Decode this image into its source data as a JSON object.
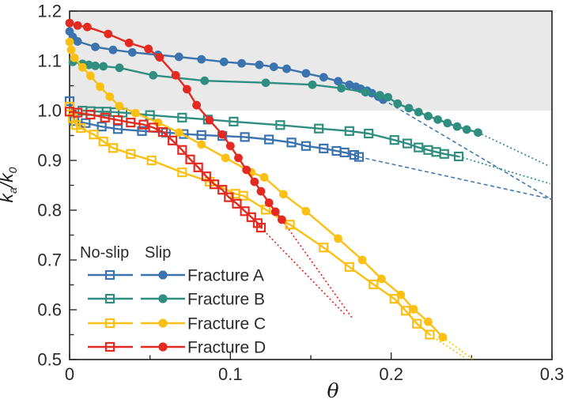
{
  "figure": {
    "xlabel": "θ",
    "ylabel": {
      "k1": "k",
      "sub_a": "a",
      "slash": "/",
      "k2": "k",
      "sub_0": "0"
    }
  },
  "chart_data": {
    "type": "line",
    "title": "",
    "xlabel": "θ",
    "ylabel": "k_a/k_0",
    "xlim": [
      0,
      0.3
    ],
    "ylim": [
      0.5,
      1.2
    ],
    "grid": false,
    "legend_position": "lower-left",
    "x_major_ticks": [
      0,
      0.1,
      0.2,
      0.3
    ],
    "x_tick_labels": [
      "0",
      "0.1",
      "0.2",
      "0.3"
    ],
    "x_minor_ticks": [
      0.05,
      0.15,
      0.25
    ],
    "y_major_ticks": [
      0.5,
      0.6,
      0.7,
      0.8,
      0.9,
      1.0,
      1.1,
      1.2
    ],
    "y_tick_labels": [
      "0.5",
      "0.6",
      "0.7",
      "0.8",
      "0.9",
      "1.0",
      "1.1",
      "1.2"
    ],
    "y_minor_ticks": [
      0.55,
      0.65,
      0.75,
      0.85,
      0.95,
      1.05,
      1.15
    ],
    "shaded_band": {
      "y_from": 1.0,
      "y_to": 1.2,
      "color": "#e9e9e9"
    },
    "colors": {
      "fracture_a": "#3a73ae",
      "fracture_b": "#2f8e80",
      "fracture_c": "#fcbf13",
      "fracture_d": "#e42a20",
      "axis": "#2b2b2b"
    },
    "legend": {
      "no_slip_header": "No-slip",
      "slip_header": "Slip",
      "entries": [
        {
          "label": "Fracture A",
          "color": "#3a73ae"
        },
        {
          "label": "Fracture B",
          "color": "#2f8e80"
        },
        {
          "label": "Fracture C",
          "color": "#fcbf13"
        },
        {
          "label": "Fracture D",
          "color": "#e42a20"
        }
      ]
    },
    "series": [
      {
        "name": "Fracture A no-slip",
        "fracture": "Fracture A",
        "variant": "no-slip",
        "marker": "square-open",
        "color": "#3a73ae",
        "extension_style": "dashed",
        "points": [
          [
            0,
            1.019
          ],
          [
            0.003,
            0.979
          ],
          [
            0.01,
            0.975
          ],
          [
            0.02,
            0.968
          ],
          [
            0.03,
            0.963
          ],
          [
            0.045,
            0.959
          ],
          [
            0.06,
            0.956
          ],
          [
            0.071,
            0.953
          ],
          [
            0.082,
            0.951
          ],
          [
            0.095,
            0.949
          ],
          [
            0.109,
            0.947
          ],
          [
            0.124,
            0.942
          ],
          [
            0.138,
            0.936
          ],
          [
            0.147,
            0.929
          ],
          [
            0.158,
            0.924
          ],
          [
            0.166,
            0.919
          ],
          [
            0.171,
            0.916
          ],
          [
            0.177,
            0.911
          ],
          [
            0.18,
            0.907
          ]
        ],
        "extension": [
          [
            0.18,
            0.907
          ],
          [
            0.3,
            0.822
          ]
        ]
      },
      {
        "name": "Fracture A slip",
        "fracture": "Fracture A",
        "variant": "slip",
        "marker": "circle-filled",
        "color": "#3a73ae",
        "extension_style": "dashed",
        "points": [
          [
            0,
            1.159
          ],
          [
            0.002,
            1.148
          ],
          [
            0.005,
            1.139
          ],
          [
            0.016,
            1.128
          ],
          [
            0.027,
            1.122
          ],
          [
            0.039,
            1.117
          ],
          [
            0.055,
            1.112
          ],
          [
            0.068,
            1.108
          ],
          [
            0.082,
            1.103
          ],
          [
            0.096,
            1.098
          ],
          [
            0.107,
            1.095
          ],
          [
            0.118,
            1.092
          ],
          [
            0.127,
            1.088
          ],
          [
            0.135,
            1.084
          ],
          [
            0.147,
            1.075
          ],
          [
            0.158,
            1.067
          ],
          [
            0.167,
            1.059
          ],
          [
            0.174,
            1.052
          ],
          [
            0.178,
            1.048
          ],
          [
            0.181,
            1.044
          ],
          [
            0.185,
            1.04
          ],
          [
            0.188,
            1.035
          ],
          [
            0.192,
            1.028
          ],
          [
            0.195,
            1.022
          ]
        ],
        "extension": [
          [
            0.195,
            1.022
          ],
          [
            0.3,
            0.821
          ]
        ]
      },
      {
        "name": "Fracture B no-slip",
        "fracture": "Fracture B",
        "variant": "no-slip",
        "marker": "square-open",
        "color": "#2f8e80",
        "extension_style": "dotted",
        "points": [
          [
            0.008,
            1.0
          ],
          [
            0.013,
            0.999
          ],
          [
            0.018,
            0.998
          ],
          [
            0.023,
            0.998
          ],
          [
            0.028,
            0.997
          ],
          [
            0.033,
            0.996
          ],
          [
            0.05,
            0.991
          ],
          [
            0.07,
            0.986
          ],
          [
            0.086,
            0.982
          ],
          [
            0.102,
            0.978
          ],
          [
            0.131,
            0.971
          ],
          [
            0.155,
            0.964
          ],
          [
            0.174,
            0.959
          ],
          [
            0.186,
            0.954
          ],
          [
            0.202,
            0.941
          ],
          [
            0.21,
            0.934
          ],
          [
            0.217,
            0.926
          ],
          [
            0.223,
            0.921
          ],
          [
            0.228,
            0.917
          ],
          [
            0.233,
            0.913
          ],
          [
            0.242,
            0.908
          ]
        ],
        "extension": [
          [
            0.242,
            0.908
          ],
          [
            0.299,
            0.853
          ]
        ]
      },
      {
        "name": "Fracture B slip",
        "fracture": "Fracture B",
        "variant": "slip",
        "marker": "circle-filled",
        "color": "#2f8e80",
        "extension_style": "dotted",
        "points": [
          [
            0.002,
            1.098
          ],
          [
            0.008,
            1.094
          ],
          [
            0.012,
            1.092
          ],
          [
            0.016,
            1.09
          ],
          [
            0.021,
            1.089
          ],
          [
            0.031,
            1.086
          ],
          [
            0.052,
            1.071
          ],
          [
            0.084,
            1.06
          ],
          [
            0.122,
            1.056
          ],
          [
            0.151,
            1.052
          ],
          [
            0.169,
            1.045
          ],
          [
            0.184,
            1.037
          ],
          [
            0.193,
            1.031
          ],
          [
            0.198,
            1.027
          ],
          [
            0.204,
            1.014
          ],
          [
            0.211,
            1.005
          ],
          [
            0.217,
            0.997
          ],
          [
            0.223,
            0.989
          ],
          [
            0.229,
            0.982
          ],
          [
            0.235,
            0.975
          ],
          [
            0.241,
            0.968
          ],
          [
            0.247,
            0.962
          ],
          [
            0.254,
            0.956
          ]
        ],
        "extension": [
          [
            0.254,
            0.956
          ],
          [
            0.298,
            0.889
          ]
        ]
      },
      {
        "name": "Fracture C no-slip",
        "fracture": "Fracture C",
        "variant": "no-slip",
        "marker": "square-open",
        "color": "#fcbf13",
        "extension_style": "dotted",
        "points": [
          [
            0,
            1.008
          ],
          [
            0.002,
            0.985
          ],
          [
            0.004,
            0.971
          ],
          [
            0.007,
            0.965
          ],
          [
            0.015,
            0.952
          ],
          [
            0.021,
            0.938
          ],
          [
            0.027,
            0.925
          ],
          [
            0.038,
            0.913
          ],
          [
            0.051,
            0.9
          ],
          [
            0.07,
            0.876
          ],
          [
            0.087,
            0.857
          ],
          [
            0.103,
            0.833
          ],
          [
            0.108,
            0.829
          ],
          [
            0.122,
            0.801
          ],
          [
            0.137,
            0.771
          ],
          [
            0.158,
            0.725
          ],
          [
            0.174,
            0.686
          ],
          [
            0.189,
            0.651
          ],
          [
            0.202,
            0.622
          ],
          [
            0.209,
            0.598
          ],
          [
            0.216,
            0.572
          ],
          [
            0.224,
            0.55
          ]
        ],
        "extension": [
          [
            0.224,
            0.55
          ],
          [
            0.246,
            0.503
          ]
        ]
      },
      {
        "name": "Fracture C slip",
        "fracture": "Fracture C",
        "variant": "slip",
        "marker": "circle-filled",
        "color": "#fcbf13",
        "extension_style": "dotted",
        "points": [
          [
            0,
            1.138
          ],
          [
            0.001,
            1.122
          ],
          [
            0.003,
            1.106
          ],
          [
            0.008,
            1.087
          ],
          [
            0.013,
            1.07
          ],
          [
            0.019,
            1.048
          ],
          [
            0.025,
            1.028
          ],
          [
            0.031,
            1.009
          ],
          [
            0.041,
            0.995
          ],
          [
            0.055,
            0.976
          ],
          [
            0.068,
            0.956
          ],
          [
            0.082,
            0.932
          ],
          [
            0.097,
            0.905
          ],
          [
            0.113,
            0.876
          ],
          [
            0.121,
            0.866
          ],
          [
            0.133,
            0.832
          ],
          [
            0.147,
            0.798
          ],
          [
            0.167,
            0.743
          ],
          [
            0.182,
            0.7
          ],
          [
            0.194,
            0.662
          ],
          [
            0.206,
            0.63
          ],
          [
            0.214,
            0.601
          ],
          [
            0.223,
            0.576
          ],
          [
            0.232,
            0.545
          ]
        ],
        "extension": [
          [
            0.232,
            0.545
          ],
          [
            0.251,
            0.5
          ]
        ]
      },
      {
        "name": "Fracture D no-slip",
        "fracture": "Fracture D",
        "variant": "no-slip",
        "marker": "square-open",
        "color": "#e42a20",
        "extension_style": "dotted",
        "points": [
          [
            0,
            0.998
          ],
          [
            0.005,
            0.996
          ],
          [
            0.013,
            0.992
          ],
          [
            0.022,
            0.986
          ],
          [
            0.03,
            0.981
          ],
          [
            0.038,
            0.976
          ],
          [
            0.046,
            0.972
          ],
          [
            0.052,
            0.966
          ],
          [
            0.058,
            0.957
          ],
          [
            0.064,
            0.94
          ],
          [
            0.07,
            0.921
          ],
          [
            0.075,
            0.902
          ],
          [
            0.08,
            0.886
          ],
          [
            0.085,
            0.868
          ],
          [
            0.09,
            0.852
          ],
          [
            0.095,
            0.841
          ],
          [
            0.099,
            0.826
          ],
          [
            0.104,
            0.813
          ],
          [
            0.109,
            0.798
          ],
          [
            0.113,
            0.786
          ],
          [
            0.117,
            0.774
          ],
          [
            0.119,
            0.765
          ]
        ],
        "extension": [
          [
            0.119,
            0.765
          ],
          [
            0.172,
            0.588
          ]
        ]
      },
      {
        "name": "Fracture D slip",
        "fracture": "Fracture D",
        "variant": "slip",
        "marker": "circle-filled",
        "color": "#e42a20",
        "extension_style": "dotted",
        "points": [
          [
            0,
            1.176
          ],
          [
            0.005,
            1.171
          ],
          [
            0.011,
            1.168
          ],
          [
            0.024,
            1.154
          ],
          [
            0.037,
            1.136
          ],
          [
            0.049,
            1.124
          ],
          [
            0.056,
            1.107
          ],
          [
            0.066,
            1.071
          ],
          [
            0.073,
            1.043
          ],
          [
            0.079,
            1.011
          ],
          [
            0.087,
            0.981
          ],
          [
            0.095,
            0.952
          ],
          [
            0.1,
            0.929
          ],
          [
            0.105,
            0.905
          ],
          [
            0.11,
            0.881
          ],
          [
            0.115,
            0.857
          ],
          [
            0.119,
            0.838
          ],
          [
            0.124,
            0.815
          ],
          [
            0.128,
            0.797
          ],
          [
            0.132,
            0.781
          ]
        ],
        "extension": [
          [
            0.132,
            0.781
          ],
          [
            0.176,
            0.582
          ]
        ]
      }
    ]
  }
}
